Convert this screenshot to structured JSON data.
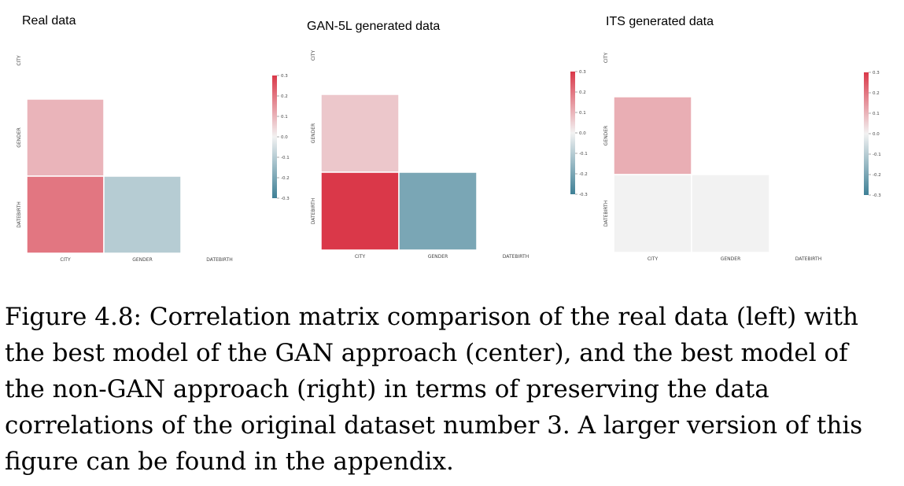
{
  "chart_data": [
    {
      "type": "heatmap",
      "title": "Real data",
      "variables": [
        "CITY",
        "GENDER",
        "DATEBIRTH"
      ],
      "lower_triangle": [
        {
          "row": "GENDER",
          "col": "CITY",
          "value": 0.1
        },
        {
          "row": "DATEBIRTH",
          "col": "CITY",
          "value": 0.2
        },
        {
          "row": "DATEBIRTH",
          "col": "GENDER",
          "value": -0.1
        }
      ],
      "colorbar": {
        "range": [
          -0.3,
          0.3
        ],
        "ticks": [
          "0.3",
          "0.2",
          "0.1",
          "0.0",
          "-0.1",
          "-0.2",
          "-0.3"
        ]
      }
    },
    {
      "type": "heatmap",
      "title": "GAN-5L generated data",
      "variables": [
        "CITY",
        "GENDER",
        "DATEBIRTH"
      ],
      "lower_triangle": [
        {
          "row": "GENDER",
          "col": "CITY",
          "value": 0.07
        },
        {
          "row": "DATEBIRTH",
          "col": "CITY",
          "value": 0.3
        },
        {
          "row": "DATEBIRTH",
          "col": "GENDER",
          "value": -0.2
        }
      ],
      "colorbar": {
        "range": [
          -0.3,
          0.3
        ],
        "ticks": [
          "0.3",
          "0.2",
          "0.1",
          "0.0",
          "-0.1",
          "-0.2",
          "-0.3"
        ]
      }
    },
    {
      "type": "heatmap",
      "title": "ITS generated data",
      "variables": [
        "CITY",
        "GENDER",
        "DATEBIRTH"
      ],
      "lower_triangle": [
        {
          "row": "GENDER",
          "col": "CITY",
          "value": 0.11
        },
        {
          "row": "DATEBIRTH",
          "col": "CITY",
          "value": 0.0
        },
        {
          "row": "DATEBIRTH",
          "col": "GENDER",
          "value": 0.0
        }
      ],
      "colorbar": {
        "range": [
          -0.3,
          0.3
        ],
        "ticks": [
          "0.3",
          "0.2",
          "0.1",
          "0.0",
          "-0.1",
          "-0.2",
          "-0.3"
        ]
      }
    }
  ],
  "caption": "Figure 4.8: Correlation matrix comparison of the real data (left) with the best model of the GAN approach (center), and the best model of the non-GAN approach (right) in terms of preserving the data correlations of the original dataset number 3. A larger version of this figure can be found in the appendix."
}
